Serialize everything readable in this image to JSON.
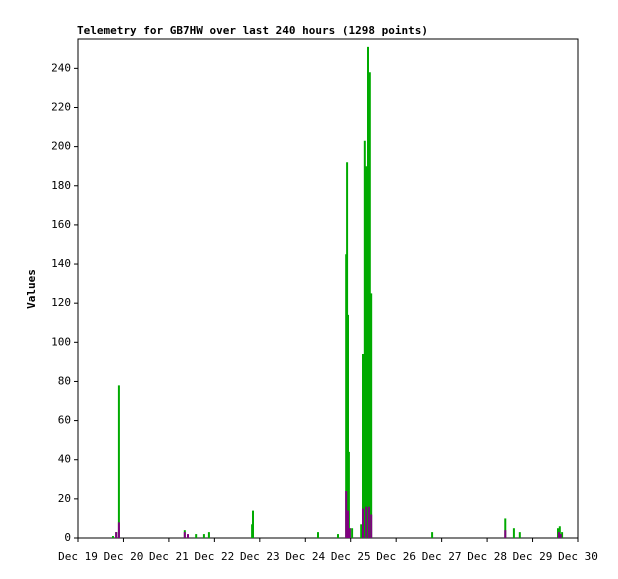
{
  "chart_data": {
    "type": "bar",
    "title": "Telemetry for GB7HW over last 240 hours (1298 points)",
    "y_label": "Values",
    "xlim": [
      0,
      11
    ],
    "xticks": [
      {
        "value": 0,
        "label": "Dec 19"
      },
      {
        "value": 1,
        "label": "Dec 20"
      },
      {
        "value": 2,
        "label": "Dec 21"
      },
      {
        "value": 3,
        "label": "Dec 22"
      },
      {
        "value": 4,
        "label": "Dec 23"
      },
      {
        "value": 5,
        "label": "Dec 24"
      },
      {
        "value": 6,
        "label": "Dec 25"
      },
      {
        "value": 7,
        "label": "Dec 26"
      },
      {
        "value": 8,
        "label": "Dec 27"
      },
      {
        "value": 9,
        "label": "Dec 28"
      },
      {
        "value": 10,
        "label": "Dec 29"
      },
      {
        "value": 11,
        "label": "Dec 30"
      }
    ],
    "ylim": [
      0,
      255
    ],
    "yticks": [
      0,
      20,
      40,
      60,
      80,
      100,
      120,
      140,
      160,
      180,
      200,
      220,
      240
    ],
    "series": [
      {
        "color": "#00aa00",
        "x": [
          0.77,
          0.84,
          0.9,
          2.35,
          2.6,
          2.77,
          2.88,
          3.83,
          3.85,
          5.28,
          5.72,
          5.9,
          5.92,
          5.94,
          5.96,
          5.98,
          6.03,
          6.23,
          6.27,
          6.31,
          6.34,
          6.38,
          6.42,
          6.45,
          7.79,
          9.4,
          9.59,
          9.72,
          10.56,
          10.6,
          10.65
        ],
        "values": [
          1,
          3,
          78,
          4,
          2,
          2,
          3,
          7,
          14,
          3,
          2,
          145,
          192,
          114,
          44,
          5,
          5,
          7,
          94,
          203,
          190,
          251,
          238,
          125,
          3,
          10,
          5,
          3,
          5,
          6,
          3
        ]
      },
      {
        "color": "#800080",
        "x": [
          0.84,
          0.9,
          2.35,
          2.42,
          5.9,
          5.94,
          5.98,
          6.27,
          6.34,
          6.4,
          6.45,
          9.4,
          10.58,
          10.62
        ],
        "values": [
          3,
          8,
          3,
          2,
          24,
          14,
          5,
          15,
          16,
          16,
          12,
          4,
          3,
          2
        ]
      }
    ]
  }
}
